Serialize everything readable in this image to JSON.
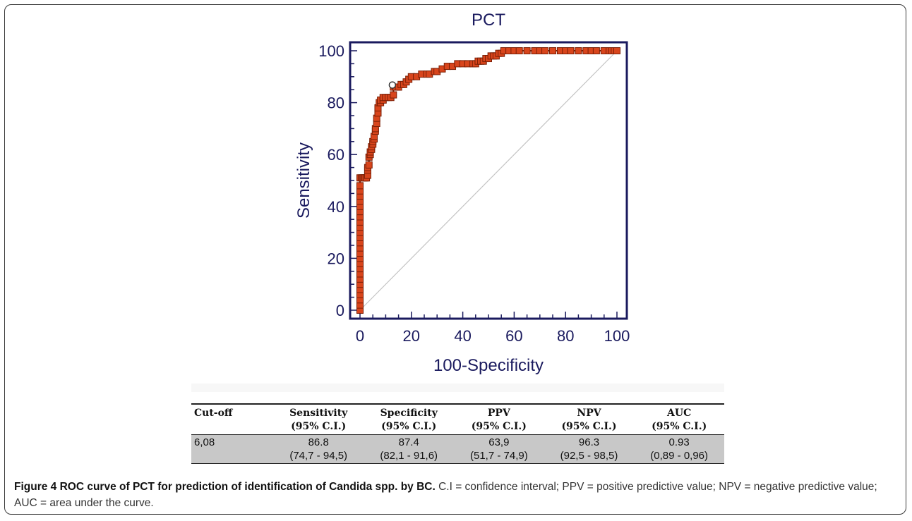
{
  "chart_data": {
    "type": "line",
    "title": "PCT",
    "xlabel": "100-Specificity",
    "ylabel": "Sensitivity",
    "xlim": [
      0,
      100
    ],
    "ylim": [
      0,
      100
    ],
    "xticks": [
      "0",
      "20",
      "40",
      "60",
      "80",
      "100"
    ],
    "yticks": [
      "0",
      "20",
      "40",
      "60",
      "80",
      "100"
    ],
    "series": [
      {
        "name": "",
        "color": "#d8451c",
        "x": [
          0,
          0,
          0,
          0,
          0,
          0,
          0,
          0,
          0,
          0,
          0,
          0,
          0,
          0,
          0,
          0,
          0,
          0,
          0,
          0,
          0,
          0,
          0,
          0,
          0,
          0,
          0.5,
          1,
          1.5,
          2,
          2.5,
          3,
          3,
          3,
          3.5,
          3.5,
          4,
          4,
          4.5,
          4.5,
          5,
          5,
          5.5,
          5.5,
          6,
          6,
          6.5,
          6.5,
          7,
          7,
          7.5,
          8,
          8,
          9,
          9,
          10,
          11,
          12,
          13,
          13,
          14,
          15,
          16,
          17,
          18,
          19,
          20,
          22,
          24,
          26,
          27,
          29,
          30,
          32,
          34,
          36,
          38,
          40,
          42,
          44,
          45,
          46,
          47,
          48,
          49,
          50,
          51,
          52,
          53,
          54,
          55,
          56,
          58,
          60,
          62,
          65,
          68,
          70,
          72,
          75,
          78,
          80,
          82,
          85,
          88,
          90,
          92,
          95,
          97,
          98,
          99,
          100
        ],
        "y": [
          0,
          2,
          4,
          6,
          8,
          10,
          12,
          14,
          16,
          18,
          20,
          22,
          24,
          26,
          28,
          30,
          32,
          34,
          36,
          38,
          40,
          42,
          44,
          46,
          48,
          51,
          51,
          51,
          51,
          51,
          51,
          52,
          54,
          55,
          56,
          59,
          60,
          61,
          62,
          63,
          64,
          65,
          66,
          67,
          69,
          70,
          72,
          74,
          76,
          78,
          80,
          80,
          81,
          81,
          82,
          82,
          82,
          82,
          83,
          86,
          86,
          86,
          87,
          87,
          88,
          89,
          90,
          90,
          91,
          91,
          91,
          92,
          92,
          93,
          94,
          94,
          95,
          95,
          95,
          95,
          95,
          96,
          96,
          96,
          97,
          97,
          98,
          98,
          98,
          99,
          99,
          100,
          100,
          100,
          100,
          100,
          100,
          100,
          100,
          100,
          100,
          100,
          100,
          100,
          100,
          100,
          100,
          100,
          100,
          100,
          100,
          100
        ]
      }
    ],
    "cutoff_point": {
      "x": 12.6,
      "y": 86.8
    },
    "reference_line": {
      "from": [
        0,
        0
      ],
      "to": [
        100,
        100
      ],
      "color": "#c4c4c4"
    },
    "marker_color": "#d8451c",
    "marker_edge_color": "#7a1e05",
    "axis_color": "#1a1a5e",
    "grid": false
  },
  "table": {
    "headers": [
      {
        "line1": "Cut-off",
        "line2": ""
      },
      {
        "line1": "Sensitivity",
        "line2": "(95% C.I.)"
      },
      {
        "line1": "Specificity",
        "line2": "(95% C.I.)"
      },
      {
        "line1": "PPV",
        "line2": "(95% C.I.)"
      },
      {
        "line1": "NPV",
        "line2": "(95% C.I.)"
      },
      {
        "line1": "AUC",
        "line2": "(95% C.I.)"
      }
    ],
    "row": [
      {
        "line1": "6,08",
        "line2": ""
      },
      {
        "line1": "86.8",
        "line2": "(74,7 - 94,5)"
      },
      {
        "line1": "87.4",
        "line2": "(82,1 - 91,6)"
      },
      {
        "line1": "63,9",
        "line2": "(51,7 - 74,9)"
      },
      {
        "line1": "96.3",
        "line2": "(92,5 - 98,5)"
      },
      {
        "line1": "0.93",
        "line2": "(0,89 - 0,96)"
      }
    ],
    "row_background": "#c8c8c8"
  },
  "caption": {
    "bold": "Figure 4 ROC curve of PCT for prediction of identification of Candida spp. by BC.",
    "text": " C.I = confidence interval; PPV = positive predictive value; NPV = negative predictive  value; AUC = area  under the curve."
  }
}
